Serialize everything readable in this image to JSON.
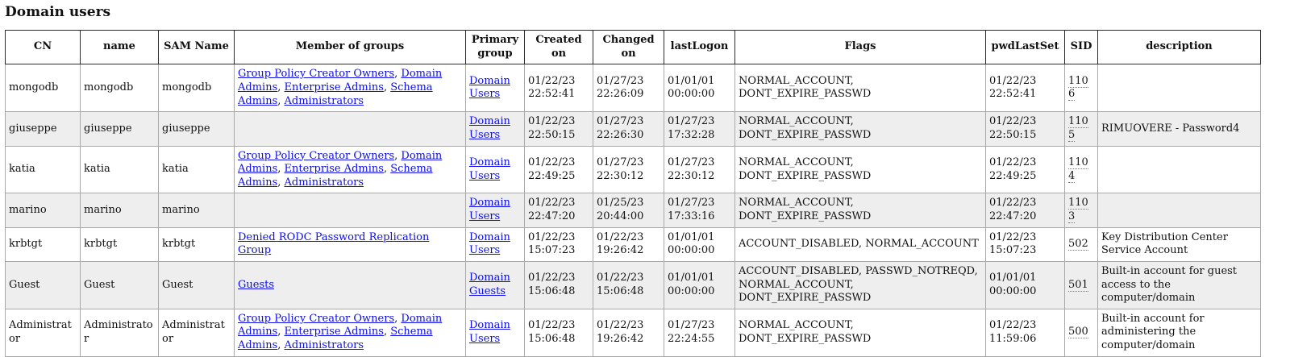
{
  "page": {
    "title": "Domain users"
  },
  "colors": {
    "link": "#0d0dee",
    "alt_row": "#eeeeee",
    "header_border": "#2b2b2b",
    "cell_border": "#a9a9a9"
  },
  "table": {
    "headers": [
      "CN",
      "name",
      "SAM Name",
      "Member of groups",
      "Primary group",
      "Created on",
      "Changed on",
      "lastLogon",
      "Flags",
      "pwdLastSet",
      "SID",
      "description"
    ],
    "rows": [
      {
        "cn": "mongodb",
        "name": "mongodb",
        "sam_name": "mongodb",
        "member_of_groups": [
          "Group Policy Creator Owners",
          "Domain Admins",
          "Enterprise Admins",
          "Schema Admins",
          "Administrators"
        ],
        "primary_group": "Domain Users",
        "created_on": "01/22/23 22:52:41",
        "changed_on": "01/27/23 22:26:09",
        "last_logon": "01/01/01 00:00:00",
        "flags": "NORMAL_ACCOUNT, DONT_EXPIRE_PASSWD",
        "pwd_last_set": "01/22/23 22:52:41",
        "sid": "1106",
        "description": ""
      },
      {
        "cn": "giuseppe",
        "name": "giuseppe",
        "sam_name": "giuseppe",
        "member_of_groups": [],
        "primary_group": "Domain Users",
        "created_on": "01/22/23 22:50:15",
        "changed_on": "01/27/23 22:26:30",
        "last_logon": "01/27/23 17:32:28",
        "flags": "NORMAL_ACCOUNT, DONT_EXPIRE_PASSWD",
        "pwd_last_set": "01/22/23 22:50:15",
        "sid": "1105",
        "description": "RIMUOVERE - Password4"
      },
      {
        "cn": "katia",
        "name": "katia",
        "sam_name": "katia",
        "member_of_groups": [
          "Group Policy Creator Owners",
          "Domain Admins",
          "Enterprise Admins",
          "Schema Admins",
          "Administrators"
        ],
        "primary_group": "Domain Users",
        "created_on": "01/22/23 22:49:25",
        "changed_on": "01/27/23 22:30:12",
        "last_logon": "01/27/23 22:30:12",
        "flags": "NORMAL_ACCOUNT, DONT_EXPIRE_PASSWD",
        "pwd_last_set": "01/22/23 22:49:25",
        "sid": "1104",
        "description": ""
      },
      {
        "cn": "marino",
        "name": "marino",
        "sam_name": "marino",
        "member_of_groups": [],
        "primary_group": "Domain Users",
        "created_on": "01/22/23 22:47:20",
        "changed_on": "01/25/23 20:44:00",
        "last_logon": "01/27/23 17:33:16",
        "flags": "NORMAL_ACCOUNT, DONT_EXPIRE_PASSWD",
        "pwd_last_set": "01/22/23 22:47:20",
        "sid": "1103",
        "description": ""
      },
      {
        "cn": "krbtgt",
        "name": "krbtgt",
        "sam_name": "krbtgt",
        "member_of_groups": [
          "Denied RODC Password Replication Group"
        ],
        "primary_group": "Domain Users",
        "created_on": "01/22/23 15:07:23",
        "changed_on": "01/22/23 19:26:42",
        "last_logon": "01/01/01 00:00:00",
        "flags": "ACCOUNT_DISABLED, NORMAL_ACCOUNT",
        "pwd_last_set": "01/22/23 15:07:23",
        "sid": "502",
        "description": "Key Distribution Center Service Account"
      },
      {
        "cn": "Guest",
        "name": "Guest",
        "sam_name": "Guest",
        "member_of_groups": [
          "Guests"
        ],
        "primary_group": "Domain Guests",
        "created_on": "01/22/23 15:06:48",
        "changed_on": "01/22/23 15:06:48",
        "last_logon": "01/01/01 00:00:00",
        "flags": "ACCOUNT_DISABLED, PASSWD_NOTREQD, NORMAL_ACCOUNT, DONT_EXPIRE_PASSWD",
        "pwd_last_set": "01/01/01 00:00:00",
        "sid": "501",
        "description": "Built-in account for guest access to the computer/domain"
      },
      {
        "cn": "Administrator",
        "name": "Administrator",
        "sam_name": "Administrator",
        "member_of_groups": [
          "Group Policy Creator Owners",
          "Domain Admins",
          "Enterprise Admins",
          "Schema Admins",
          "Administrators"
        ],
        "primary_group": "Domain Users",
        "created_on": "01/22/23 15:06:48",
        "changed_on": "01/22/23 19:26:42",
        "last_logon": "01/27/23 22:24:55",
        "flags": "NORMAL_ACCOUNT, DONT_EXPIRE_PASSWD",
        "pwd_last_set": "01/22/23 11:59:06",
        "sid": "500",
        "description": "Built-in account for administering the computer/domain"
      }
    ]
  }
}
